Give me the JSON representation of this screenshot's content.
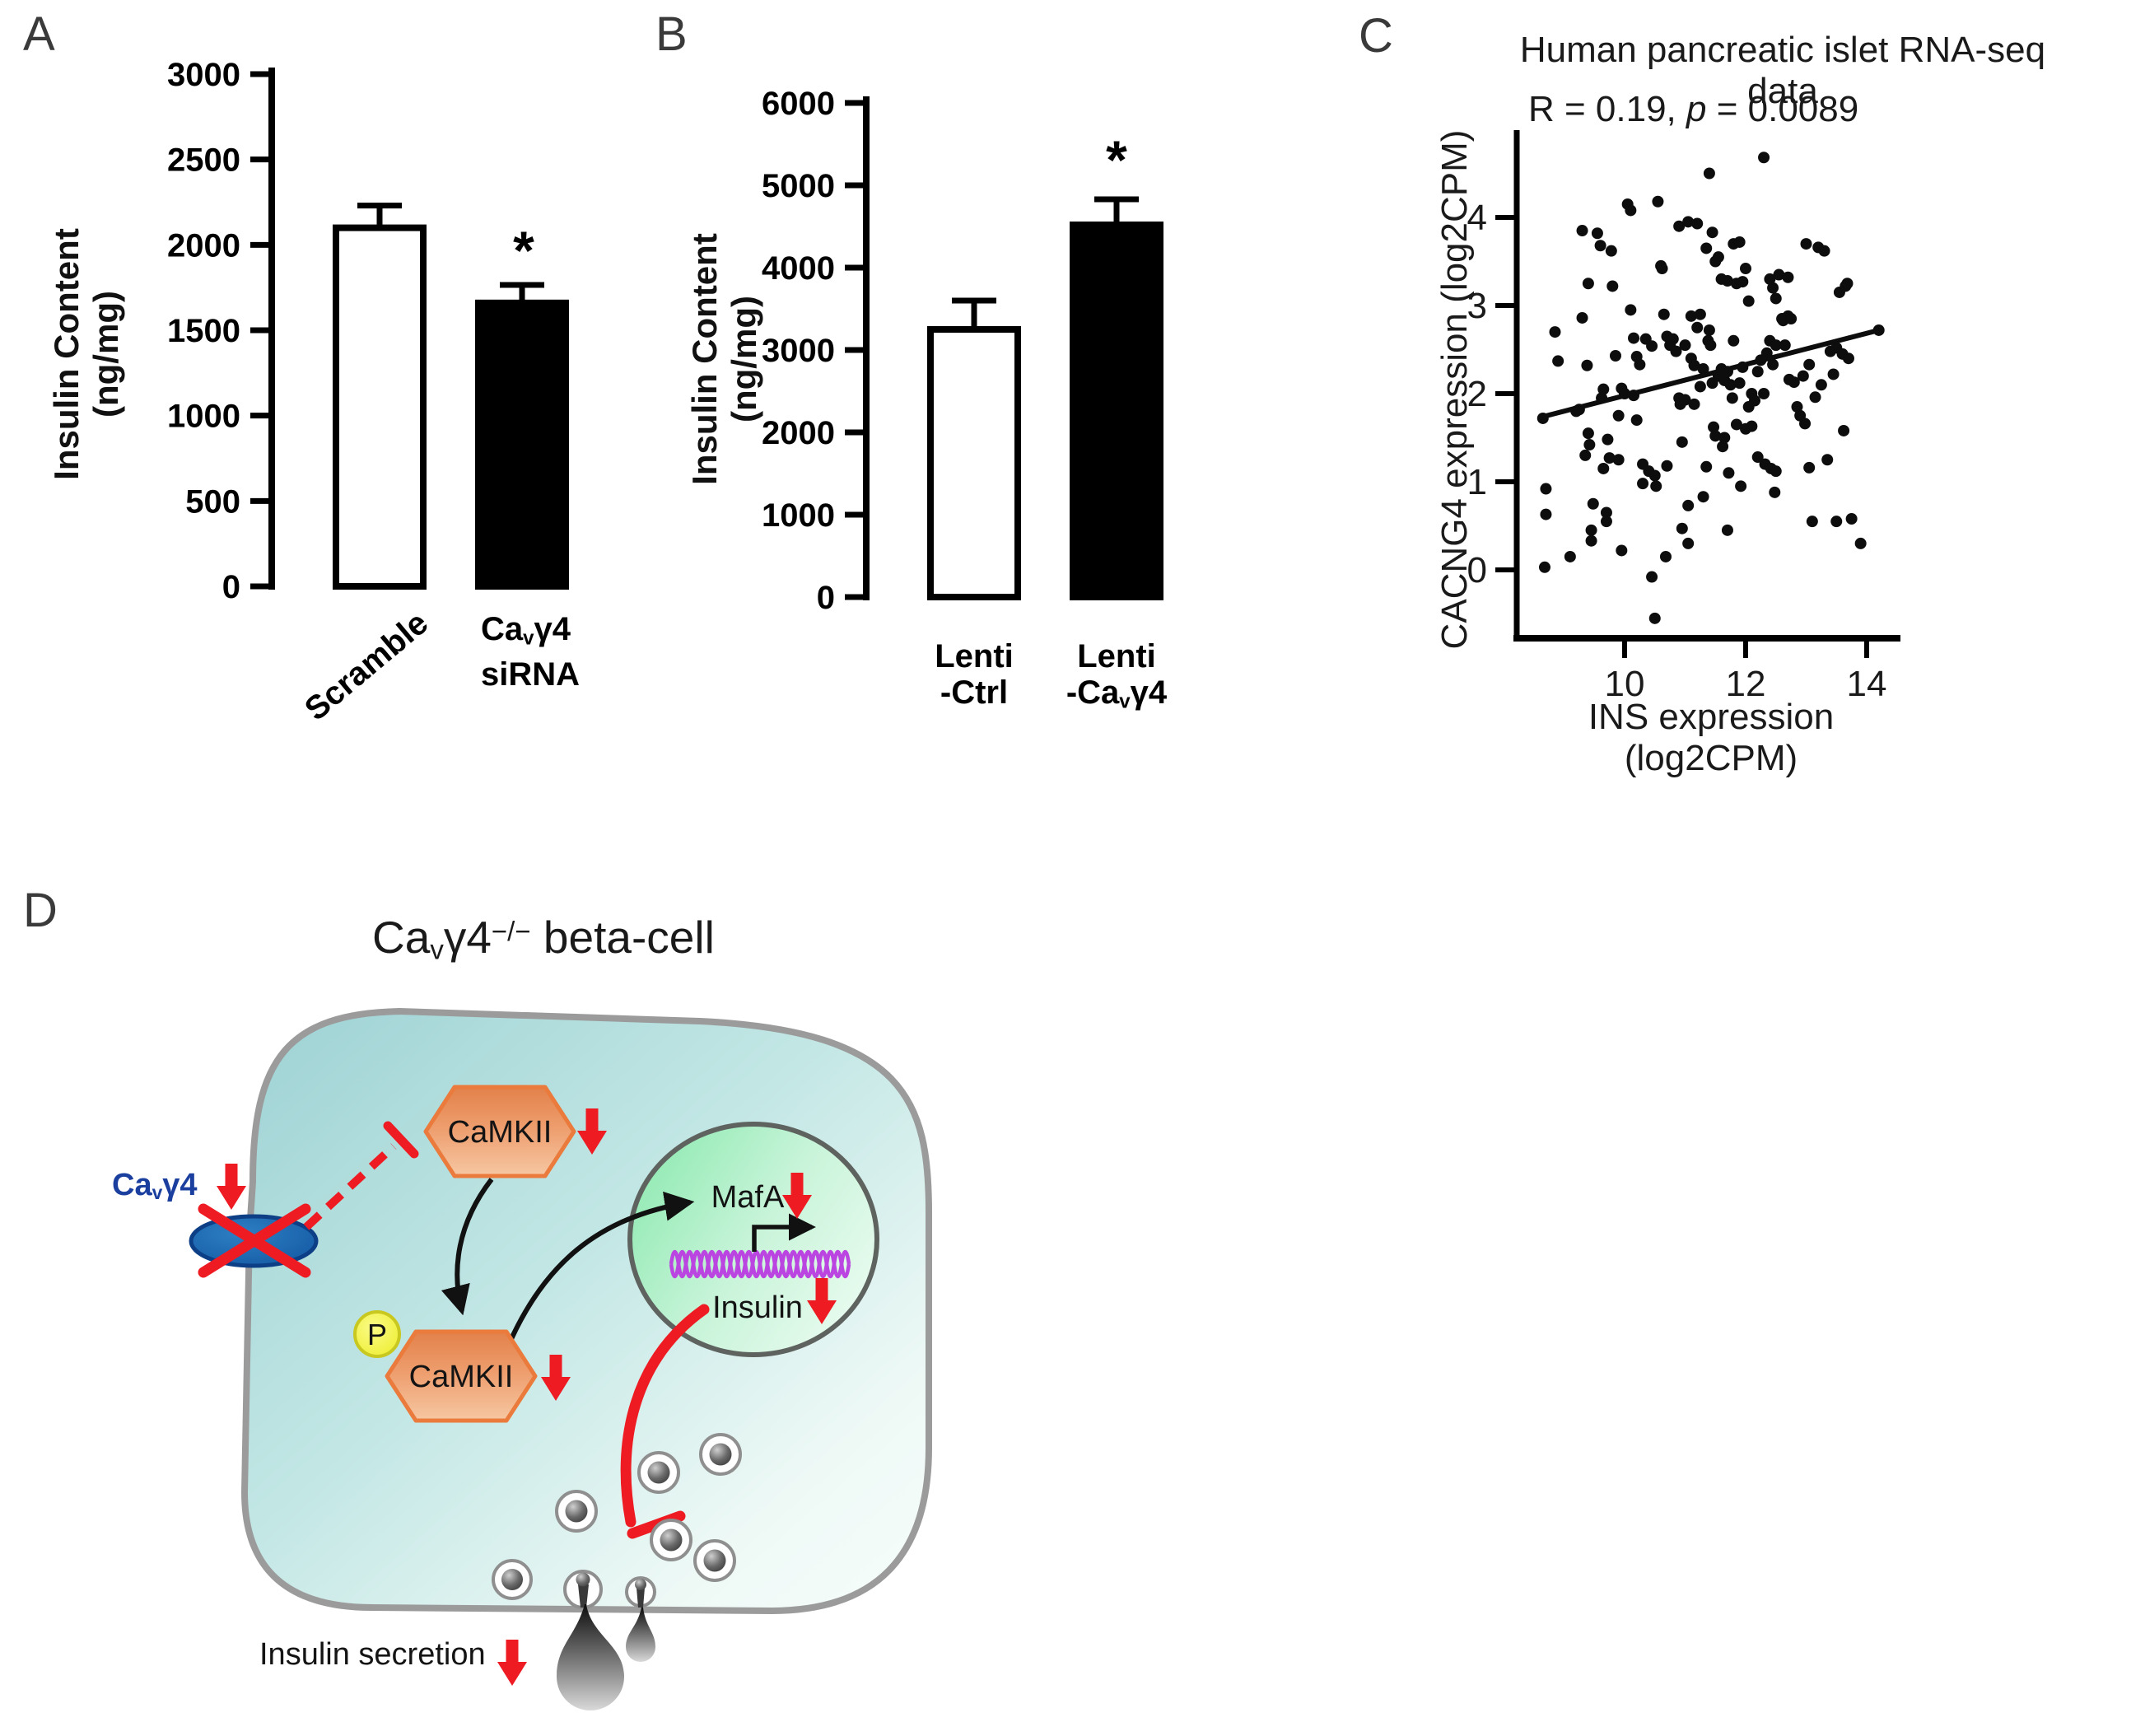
{
  "figure": {
    "kind": "scientific-figure",
    "background": "#ffffff"
  },
  "colors": {
    "bar_open_fill": "#ffffff",
    "bar_filled_fill": "#000000",
    "axis": "#000000",
    "accent_red": "#ee1b22",
    "channel_blue": "#1b63a8",
    "label_blue": "#1b3f9e",
    "cell_teal": "#9ed2d4",
    "nucleus_green": "#86e8ab",
    "hexagon_orange": "#ee9d6d",
    "phospho_yellow": "#f6f64e",
    "dna_purple": "#bb45e0",
    "vesicle_gray": "#6a6a6a",
    "membrane_gray": "#9b9b9b"
  },
  "panels": {
    "A": {
      "label": "A",
      "y_title": "Insulin Content (ng/mg)",
      "sig": "*",
      "x_label_bar1": "Scramble",
      "x_label_bar2_line1": {
        "pre": "Ca",
        "sub": "v",
        "post": "γ4"
      },
      "x_label_bar2_line2": "siRNA"
    },
    "B": {
      "label": "B",
      "y_title": "Insulin Content (ng/mg)",
      "sig": "*",
      "x_label_bar1_line1": "Lenti",
      "x_label_bar1_line2": "-Ctrl",
      "x_label_bar2_line1": "Lenti",
      "x_label_bar2_line2": {
        "pre": "-Ca",
        "sub": "v",
        "post": "γ4"
      }
    },
    "C": {
      "label": "C",
      "title": "Human pancreatic islet RNA-seq data",
      "stats": {
        "r_part": "R = 0.19, ",
        "p_symbol": "p",
        "value_part": " = 0.0089"
      },
      "y_title": "CACNG4 expression (log2CPM)",
      "x_title": "INS expression (log2CPM)"
    },
    "D": {
      "label": "D",
      "title": {
        "pre": "Ca",
        "sub": "v",
        "mid": "γ4",
        "sup": "−/−",
        "post": " beta-cell"
      },
      "channel_label": {
        "pre": "Ca",
        "sub": "v",
        "post": "γ4"
      },
      "camkii": "CaMKII",
      "phospho": "P",
      "mafa": "MafA",
      "insulin_gene": "Insulin",
      "secretion_label": "Insulin secretion"
    }
  },
  "chart_data": [
    {
      "type": "bar",
      "panel": "A",
      "title": "",
      "ylabel": "Insulin Content (ng/mg)",
      "categories": [
        "Scramble",
        "Cavγ4 siRNA"
      ],
      "values": [
        2100,
        1660
      ],
      "sem": [
        130,
        105
      ],
      "fills": [
        "white",
        "black"
      ],
      "significant": [
        false,
        true
      ],
      "yticks": [
        0,
        500,
        1000,
        1500,
        2000,
        2500,
        3000
      ],
      "ylim": [
        0,
        3000
      ]
    },
    {
      "type": "bar",
      "panel": "B",
      "title": "",
      "ylabel": "Insulin Content (ng/mg)",
      "categories": [
        "Lenti-Ctrl",
        "Lenti-Cavγ4"
      ],
      "values": [
        3250,
        4520
      ],
      "sem": [
        350,
        310
      ],
      "fills": [
        "white",
        "black"
      ],
      "significant": [
        false,
        true
      ],
      "yticks": [
        0,
        1000,
        2000,
        3000,
        4000,
        5000,
        6000
      ],
      "ylim": [
        0,
        6000
      ]
    },
    {
      "type": "scatter",
      "panel": "C",
      "title": "Human pancreatic islet RNA-seq data",
      "annotation": "R = 0.19, p = 0.0089",
      "xlabel": "INS expression (log2CPM)",
      "ylabel": "CACNG4 expression (log2CPM)",
      "xticks": [
        10,
        12,
        14
      ],
      "yticks": [
        0,
        1,
        2,
        3,
        4
      ],
      "xlim": [
        8.2,
        14.5
      ],
      "ylim": [
        -0.85,
        4.95
      ],
      "regression": {
        "x1": 8.6,
        "y1": 1.73,
        "x2": 14.2,
        "y2": 2.72
      },
      "points": [
        [
          8.65,
          1.72
        ],
        [
          8.7,
          0.92
        ],
        [
          8.7,
          0.63
        ],
        [
          8.68,
          0.03
        ],
        [
          8.85,
          2.7
        ],
        [
          8.9,
          2.37
        ],
        [
          9.1,
          0.15
        ],
        [
          9.2,
          1.8
        ],
        [
          9.25,
          1.82
        ],
        [
          9.3,
          3.85
        ],
        [
          9.3,
          2.86
        ],
        [
          9.35,
          1.3
        ],
        [
          9.4,
          3.25
        ],
        [
          9.38,
          2.32
        ],
        [
          9.4,
          1.55
        ],
        [
          9.42,
          1.42
        ],
        [
          9.45,
          0.45
        ],
        [
          9.45,
          0.33
        ],
        [
          9.48,
          0.75
        ],
        [
          9.55,
          3.82
        ],
        [
          9.6,
          3.68
        ],
        [
          9.62,
          1.95
        ],
        [
          9.65,
          2.05
        ],
        [
          9.65,
          1.15
        ],
        [
          9.7,
          0.65
        ],
        [
          9.7,
          0.55
        ],
        [
          9.72,
          1.48
        ],
        [
          9.75,
          1.27
        ],
        [
          9.78,
          3.62
        ],
        [
          9.8,
          3.22
        ],
        [
          9.85,
          2.43
        ],
        [
          9.9,
          1.75
        ],
        [
          9.9,
          1.25
        ],
        [
          9.95,
          2.06
        ],
        [
          9.95,
          0.22
        ],
        [
          10.0,
          2.0
        ],
        [
          10.05,
          4.15
        ],
        [
          10.1,
          4.08
        ],
        [
          10.1,
          2.95
        ],
        [
          10.15,
          2.63
        ],
        [
          10.15,
          1.98
        ],
        [
          10.2,
          2.42
        ],
        [
          10.2,
          1.7
        ],
        [
          10.25,
          2.33
        ],
        [
          10.3,
          1.2
        ],
        [
          10.3,
          0.98
        ],
        [
          10.35,
          2.62
        ],
        [
          10.4,
          1.12
        ],
        [
          10.45,
          2.54
        ],
        [
          10.45,
          -0.08
        ],
        [
          10.5,
          -0.55
        ],
        [
          10.5,
          1.07
        ],
        [
          10.52,
          0.95
        ],
        [
          10.55,
          4.18
        ],
        [
          10.6,
          3.45
        ],
        [
          10.62,
          3.42
        ],
        [
          10.65,
          2.9
        ],
        [
          10.68,
          0.15
        ],
        [
          10.7,
          2.65
        ],
        [
          10.7,
          1.18
        ],
        [
          10.75,
          2.55
        ],
        [
          10.8,
          2.62
        ],
        [
          10.85,
          2.48
        ],
        [
          10.9,
          3.9
        ],
        [
          10.9,
          1.95
        ],
        [
          10.92,
          1.88
        ],
        [
          10.95,
          0.47
        ],
        [
          10.95,
          1.45
        ],
        [
          11.0,
          2.55
        ],
        [
          11.0,
          1.93
        ],
        [
          11.05,
          3.95
        ],
        [
          11.05,
          0.73
        ],
        [
          11.05,
          0.3
        ],
        [
          11.1,
          2.88
        ],
        [
          11.1,
          2.4
        ],
        [
          11.15,
          2.32
        ],
        [
          11.15,
          1.88
        ],
        [
          11.2,
          3.93
        ],
        [
          11.2,
          2.75
        ],
        [
          11.25,
          2.9
        ],
        [
          11.25,
          2.08
        ],
        [
          11.3,
          2.28
        ],
        [
          11.3,
          0.83
        ],
        [
          11.35,
          3.65
        ],
        [
          11.35,
          1.17
        ],
        [
          11.38,
          2.6
        ],
        [
          11.4,
          4.5
        ],
        [
          11.4,
          2.72
        ],
        [
          11.42,
          2.55
        ],
        [
          11.45,
          3.83
        ],
        [
          11.45,
          2.12
        ],
        [
          11.47,
          1.62
        ],
        [
          11.5,
          3.5
        ],
        [
          11.5,
          1.52
        ],
        [
          11.55,
          3.55
        ],
        [
          11.55,
          2.2
        ],
        [
          11.6,
          3.3
        ],
        [
          11.6,
          2.28
        ],
        [
          11.62,
          1.4
        ],
        [
          11.65,
          2.15
        ],
        [
          11.65,
          1.5
        ],
        [
          11.7,
          3.28
        ],
        [
          11.7,
          2.25
        ],
        [
          11.7,
          0.45
        ],
        [
          11.72,
          1.1
        ],
        [
          11.75,
          2.1
        ],
        [
          11.78,
          1.95
        ],
        [
          11.8,
          3.7
        ],
        [
          11.8,
          2.6
        ],
        [
          11.85,
          3.25
        ],
        [
          11.85,
          1.65
        ],
        [
          11.9,
          3.72
        ],
        [
          11.9,
          2.12
        ],
        [
          11.92,
          0.95
        ],
        [
          11.95,
          3.27
        ],
        [
          11.95,
          2.3
        ],
        [
          12.0,
          3.42
        ],
        [
          12.0,
          1.6
        ],
        [
          12.05,
          3.05
        ],
        [
          12.05,
          1.85
        ],
        [
          12.1,
          2.0
        ],
        [
          12.1,
          1.63
        ],
        [
          12.15,
          1.92
        ],
        [
          12.2,
          2.25
        ],
        [
          12.2,
          1.28
        ],
        [
          12.25,
          2.38
        ],
        [
          12.3,
          4.68
        ],
        [
          12.3,
          2.0
        ],
        [
          12.32,
          1.2
        ],
        [
          12.35,
          2.46
        ],
        [
          12.4,
          3.3
        ],
        [
          12.4,
          2.6
        ],
        [
          12.42,
          1.15
        ],
        [
          12.45,
          3.2
        ],
        [
          12.45,
          2.33
        ],
        [
          12.48,
          0.88
        ],
        [
          12.5,
          3.08
        ],
        [
          12.5,
          2.55
        ],
        [
          12.5,
          1.12
        ],
        [
          12.55,
          3.35
        ],
        [
          12.6,
          2.85
        ],
        [
          12.62,
          2.83
        ],
        [
          12.65,
          2.55
        ],
        [
          12.7,
          3.32
        ],
        [
          12.7,
          2.88
        ],
        [
          12.72,
          2.16
        ],
        [
          12.75,
          2.85
        ],
        [
          12.8,
          2.13
        ],
        [
          12.85,
          1.85
        ],
        [
          12.9,
          1.75
        ],
        [
          12.95,
          2.2
        ],
        [
          12.98,
          1.66
        ],
        [
          13.0,
          3.7
        ],
        [
          13.05,
          2.33
        ],
        [
          13.05,
          1.16
        ],
        [
          13.1,
          0.55
        ],
        [
          13.15,
          1.96
        ],
        [
          13.2,
          3.66
        ],
        [
          13.25,
          2.1
        ],
        [
          13.3,
          3.62
        ],
        [
          13.35,
          1.25
        ],
        [
          13.4,
          2.48
        ],
        [
          13.45,
          2.22
        ],
        [
          13.5,
          2.52
        ],
        [
          13.5,
          0.55
        ],
        [
          13.55,
          3.15
        ],
        [
          13.6,
          2.45
        ],
        [
          13.62,
          1.58
        ],
        [
          13.65,
          3.22
        ],
        [
          13.68,
          3.25
        ],
        [
          13.7,
          2.4
        ],
        [
          13.75,
          0.58
        ],
        [
          13.9,
          0.3
        ],
        [
          14.2,
          2.72
        ]
      ],
      "legend": null,
      "grid": false
    }
  ]
}
